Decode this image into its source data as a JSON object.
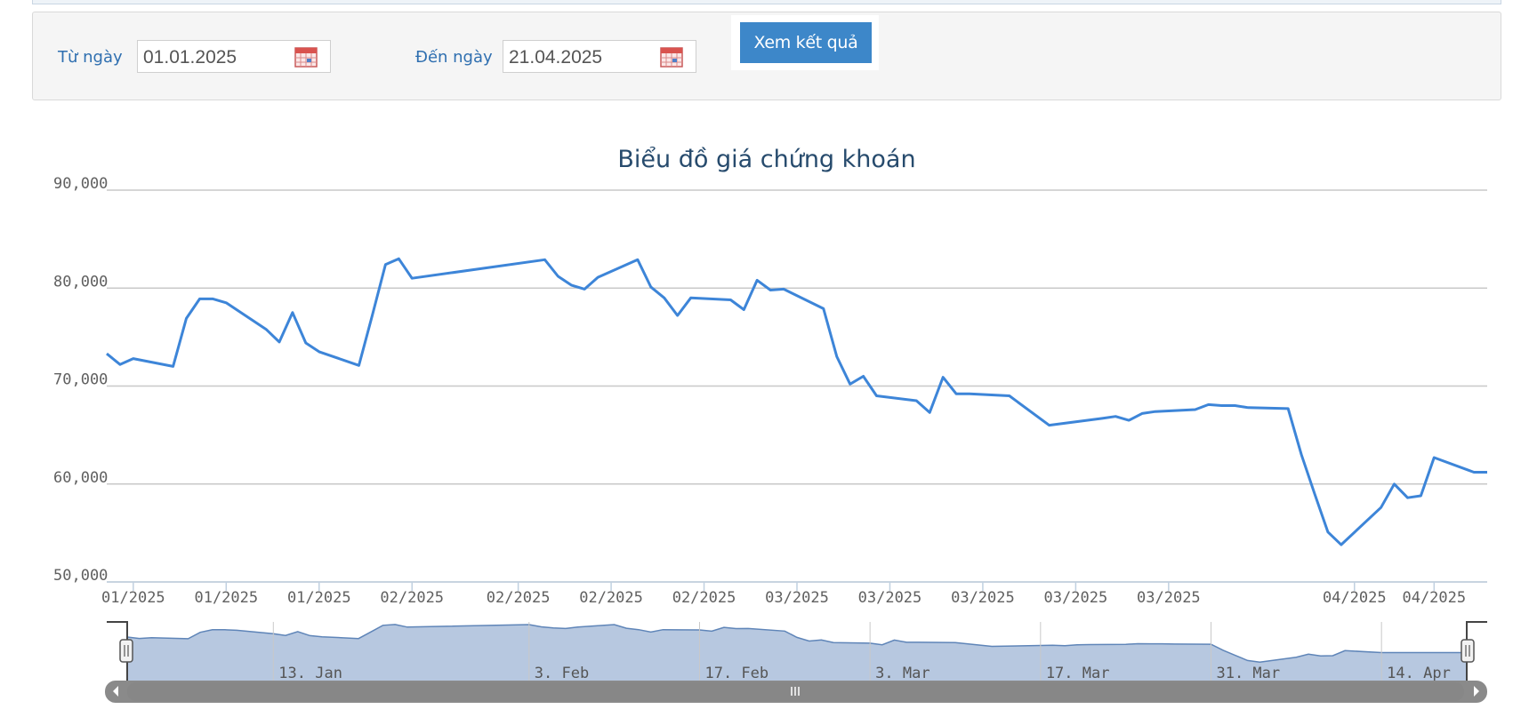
{
  "filter": {
    "from_label": "Từ ngày",
    "from_value": "01.01.2025",
    "to_label": "Đến ngày",
    "to_value": "21.04.2025",
    "submit_label": "Xem kết quả",
    "calendar_icon": "calendar-icon"
  },
  "colors": {
    "line": "#3d85d8",
    "navigator_fill": "#b7c8e0",
    "navigator_line": "#5f85b8",
    "button": "#3d87c9",
    "title": "#274b6d",
    "label": "#2f6fb0"
  },
  "chart_data": {
    "type": "line",
    "title": "Biểu đồ giá chứng khoán",
    "ylim": [
      50000,
      90000
    ],
    "yticks": [
      "90,000",
      "80,000",
      "70,000",
      "60,000",
      "50,000"
    ],
    "ytick_values": [
      90000,
      80000,
      70000,
      60000,
      50000
    ],
    "xtick_labels": [
      "01/2025",
      "01/2025",
      "01/2025",
      "02/2025",
      "02/2025",
      "02/2025",
      "02/2025",
      "03/2025",
      "03/2025",
      "03/2025",
      "03/2025",
      "03/2025",
      "04/2025",
      "04/2025"
    ],
    "xtick_dates": [
      "2025-01-03",
      "2025-01-10",
      "2025-01-17",
      "2025-01-24",
      "2025-02-01",
      "2025-02-08",
      "2025-02-15",
      "2025-02-22",
      "2025-03-01",
      "2025-03-08",
      "2025-03-15",
      "2025-03-22",
      "2025-04-05",
      "2025-04-11"
    ],
    "grid": true,
    "legend": "none",
    "series": [
      {
        "x": [
          "2025-01-01",
          "2025-01-02",
          "2025-01-03",
          "2025-01-06",
          "2025-01-07",
          "2025-01-08",
          "2025-01-09",
          "2025-01-10",
          "2025-01-13",
          "2025-01-14",
          "2025-01-15",
          "2025-01-16",
          "2025-01-17",
          "2025-01-20",
          "2025-01-21",
          "2025-01-22",
          "2025-01-23",
          "2025-01-24",
          "2025-02-03",
          "2025-02-04",
          "2025-02-05",
          "2025-02-06",
          "2025-02-07",
          "2025-02-10",
          "2025-02-11",
          "2025-02-12",
          "2025-02-13",
          "2025-02-14",
          "2025-02-17",
          "2025-02-18",
          "2025-02-19",
          "2025-02-20",
          "2025-02-21",
          "2025-02-24",
          "2025-02-25",
          "2025-02-26",
          "2025-02-27",
          "2025-02-28",
          "2025-03-03",
          "2025-03-04",
          "2025-03-05",
          "2025-03-06",
          "2025-03-07",
          "2025-03-10",
          "2025-03-13",
          "2025-03-17",
          "2025-03-18",
          "2025-03-19",
          "2025-03-20",
          "2025-03-21",
          "2025-03-24",
          "2025-03-25",
          "2025-03-26",
          "2025-03-27",
          "2025-03-28",
          "2025-03-31",
          "2025-04-01",
          "2025-04-02",
          "2025-04-03",
          "2025-04-04",
          "2025-04-07",
          "2025-04-08",
          "2025-04-09",
          "2025-04-10",
          "2025-04-11",
          "2025-04-14",
          "2025-04-15",
          "2025-04-16",
          "2025-04-17",
          "2025-04-18",
          "2025-04-21"
        ],
        "values": [
          73300,
          72200,
          72800,
          72000,
          76900,
          78900,
          78900,
          78500,
          75800,
          74500,
          77500,
          74400,
          73500,
          72100,
          77200,
          82400,
          83000,
          81000,
          82900,
          81200,
          80300,
          79900,
          81100,
          82900,
          80100,
          79000,
          77200,
          79000,
          78800,
          77800,
          80800,
          79800,
          79900,
          77900,
          73000,
          70200,
          71000,
          69000,
          68500,
          67300,
          70900,
          69200,
          69200,
          69000,
          66000,
          66700,
          66900,
          66500,
          67200,
          67400,
          67600,
          68100,
          68000,
          68000,
          67800,
          67700,
          63000,
          59000,
          55100,
          53800,
          57600,
          60000,
          58600,
          58800,
          62700,
          61200,
          61200,
          null,
          null,
          null,
          null
        ]
      }
    ],
    "navigator_labels": [
      "13. Jan",
      "3. Feb",
      "17. Feb",
      "3. Mar",
      "17. Mar",
      "31. Mar",
      "14. Apr"
    ]
  }
}
